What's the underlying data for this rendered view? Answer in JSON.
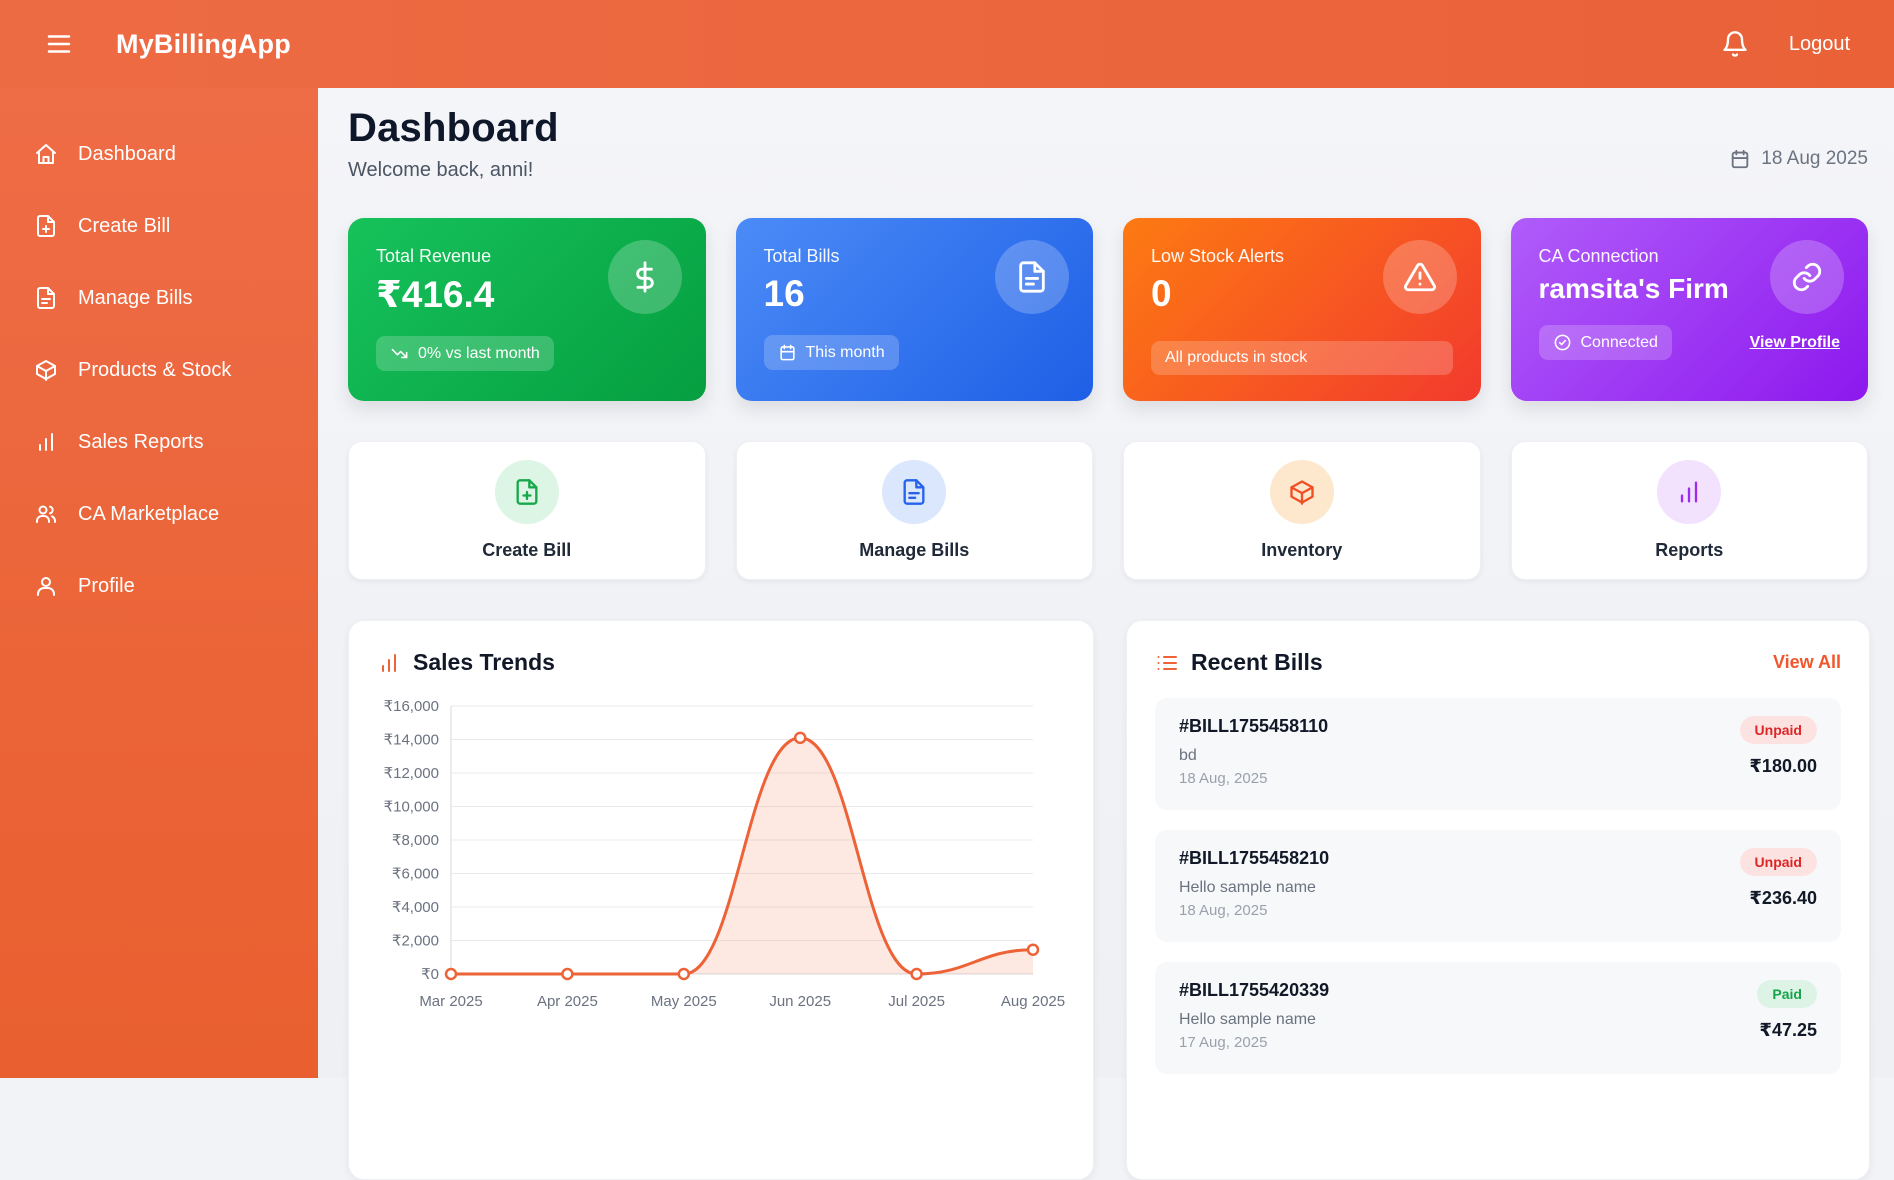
{
  "topbar": {
    "app_name": "MyBillingApp",
    "logout_label": "Logout"
  },
  "sidebar": {
    "items": [
      {
        "label": "Dashboard",
        "icon": "home"
      },
      {
        "label": "Create Bill",
        "icon": "file-plus"
      },
      {
        "label": "Manage Bills",
        "icon": "file-text"
      },
      {
        "label": "Products & Stock",
        "icon": "package"
      },
      {
        "label": "Sales Reports",
        "icon": "bar-chart"
      },
      {
        "label": "CA Marketplace",
        "icon": "users"
      },
      {
        "label": "Profile",
        "icon": "user"
      }
    ]
  },
  "header": {
    "title": "Dashboard",
    "welcome": "Welcome back, anni!",
    "date": "18 Aug 2025"
  },
  "stat_cards": [
    {
      "name": "total-revenue",
      "label": "Total Revenue",
      "value": "₹416.4",
      "icon": "dollar",
      "badge": {
        "text": "0% vs last month",
        "icon": "trending-down",
        "full_width": false
      },
      "gradient": [
        "#16c25b",
        "#059e40"
      ]
    },
    {
      "name": "total-bills",
      "label": "Total Bills",
      "value": "16",
      "icon": "file-text",
      "badge": {
        "text": "This month",
        "icon": "calendar",
        "full_width": false
      },
      "gradient": [
        "#4b8bf7",
        "#1e5fe6"
      ]
    },
    {
      "name": "low-stock-alerts",
      "label": "Low Stock Alerts",
      "value": "0",
      "icon": "warning",
      "badge": {
        "text": "All products in stock",
        "icon": null,
        "full_width": true
      },
      "gradient": [
        "#fd7a12",
        "#f23a2e"
      ]
    },
    {
      "name": "ca-connection",
      "label": "CA Connection",
      "value": "ramsita's Firm",
      "icon": "link",
      "badge": {
        "text": "Connected",
        "icon": "check-circle",
        "full_width": false
      },
      "link": "View Profile",
      "gradient": [
        "#b05cfa",
        "#8d18ee"
      ]
    }
  ],
  "quick_actions": [
    {
      "label": "Create Bill",
      "icon": "file-plus",
      "icon_color": "#17a84b",
      "circle_color": "#dcf5e4"
    },
    {
      "label": "Manage Bills",
      "icon": "file-text",
      "icon_color": "#2563eb",
      "circle_color": "#dbe7fc"
    },
    {
      "label": "Inventory",
      "icon": "package",
      "icon_color": "#f04f23",
      "circle_color": "#fde8ce"
    },
    {
      "label": "Reports",
      "icon": "bar-chart",
      "icon_color": "#9b2cf2",
      "circle_color": "#f2e2fd"
    }
  ],
  "chart_data": {
    "type": "line",
    "title": "Sales Trends",
    "x": [
      "Mar 2025",
      "Apr 2025",
      "May 2025",
      "Jun 2025",
      "Jul 2025",
      "Aug 2025"
    ],
    "values": [
      0,
      0,
      0,
      14100,
      0,
      1450
    ],
    "ylim": [
      0,
      16000
    ],
    "ytick_step": 2000,
    "currency_prefix": "₹",
    "grid": true,
    "area_fill": true,
    "line_color": "#ed6337",
    "fill_color": "rgba(240,98,52,0.14)"
  },
  "recent_bills": {
    "title": "Recent Bills",
    "view_all_label": "View All",
    "bills": [
      {
        "id": "#BILL1755458110",
        "customer": "bd",
        "date": "18 Aug, 2025",
        "status": "Unpaid",
        "amount": "₹180.00"
      },
      {
        "id": "#BILL1755458210",
        "customer": "Hello sample name",
        "date": "18 Aug, 2025",
        "status": "Unpaid",
        "amount": "₹236.40"
      },
      {
        "id": "#BILL1755420339",
        "customer": "Hello sample name",
        "date": "17 Aug, 2025",
        "status": "Paid",
        "amount": "₹47.25"
      }
    ]
  },
  "colors": {
    "accent_orange": "#ed6337",
    "topbar_orange": "#ec6a41",
    "status_unpaid": "#dc2626",
    "status_paid": "#16a34a"
  }
}
